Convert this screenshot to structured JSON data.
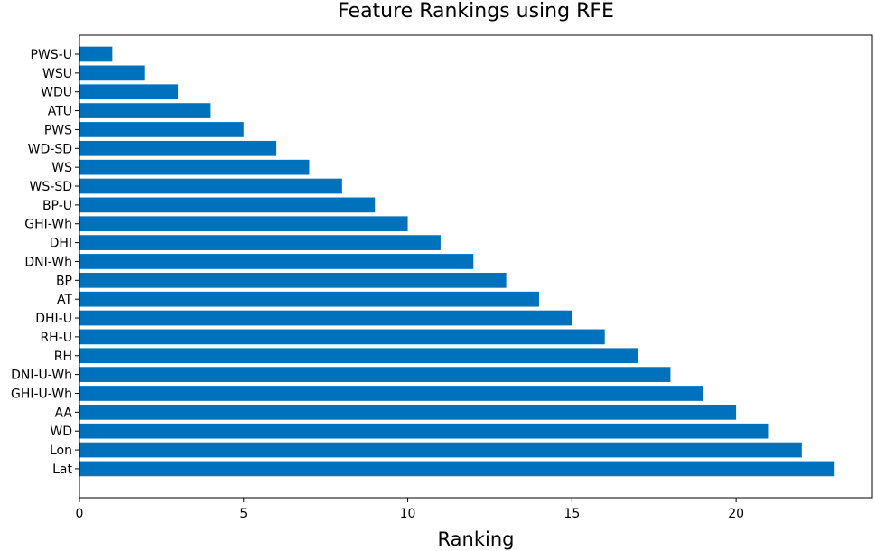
{
  "chart_data": {
    "type": "bar",
    "orientation": "horizontal",
    "title": "Feature Rankings using RFE",
    "xlabel": "Ranking",
    "ylabel": "",
    "xlim": [
      0,
      24.15
    ],
    "xticks": [
      0,
      5,
      10,
      15,
      20
    ],
    "grid": false,
    "bar_color": "#0072bd",
    "categories": [
      "PWS-U",
      "WSU",
      "WDU",
      "ATU",
      "PWS",
      "WD-SD",
      "WS",
      "WS-SD",
      "BP-U",
      "GHI-Wh",
      "DHI",
      "DNI-Wh",
      "BP",
      "AT",
      "DHI-U",
      "RH-U",
      "RH",
      "DNI-U-Wh",
      "GHI-U-Wh",
      "AA",
      "WD",
      "Lon",
      "Lat"
    ],
    "values": [
      1,
      2,
      3,
      4,
      5,
      6,
      7,
      8,
      9,
      10,
      11,
      12,
      13,
      14,
      15,
      16,
      17,
      18,
      19,
      20,
      21,
      22,
      23
    ]
  }
}
